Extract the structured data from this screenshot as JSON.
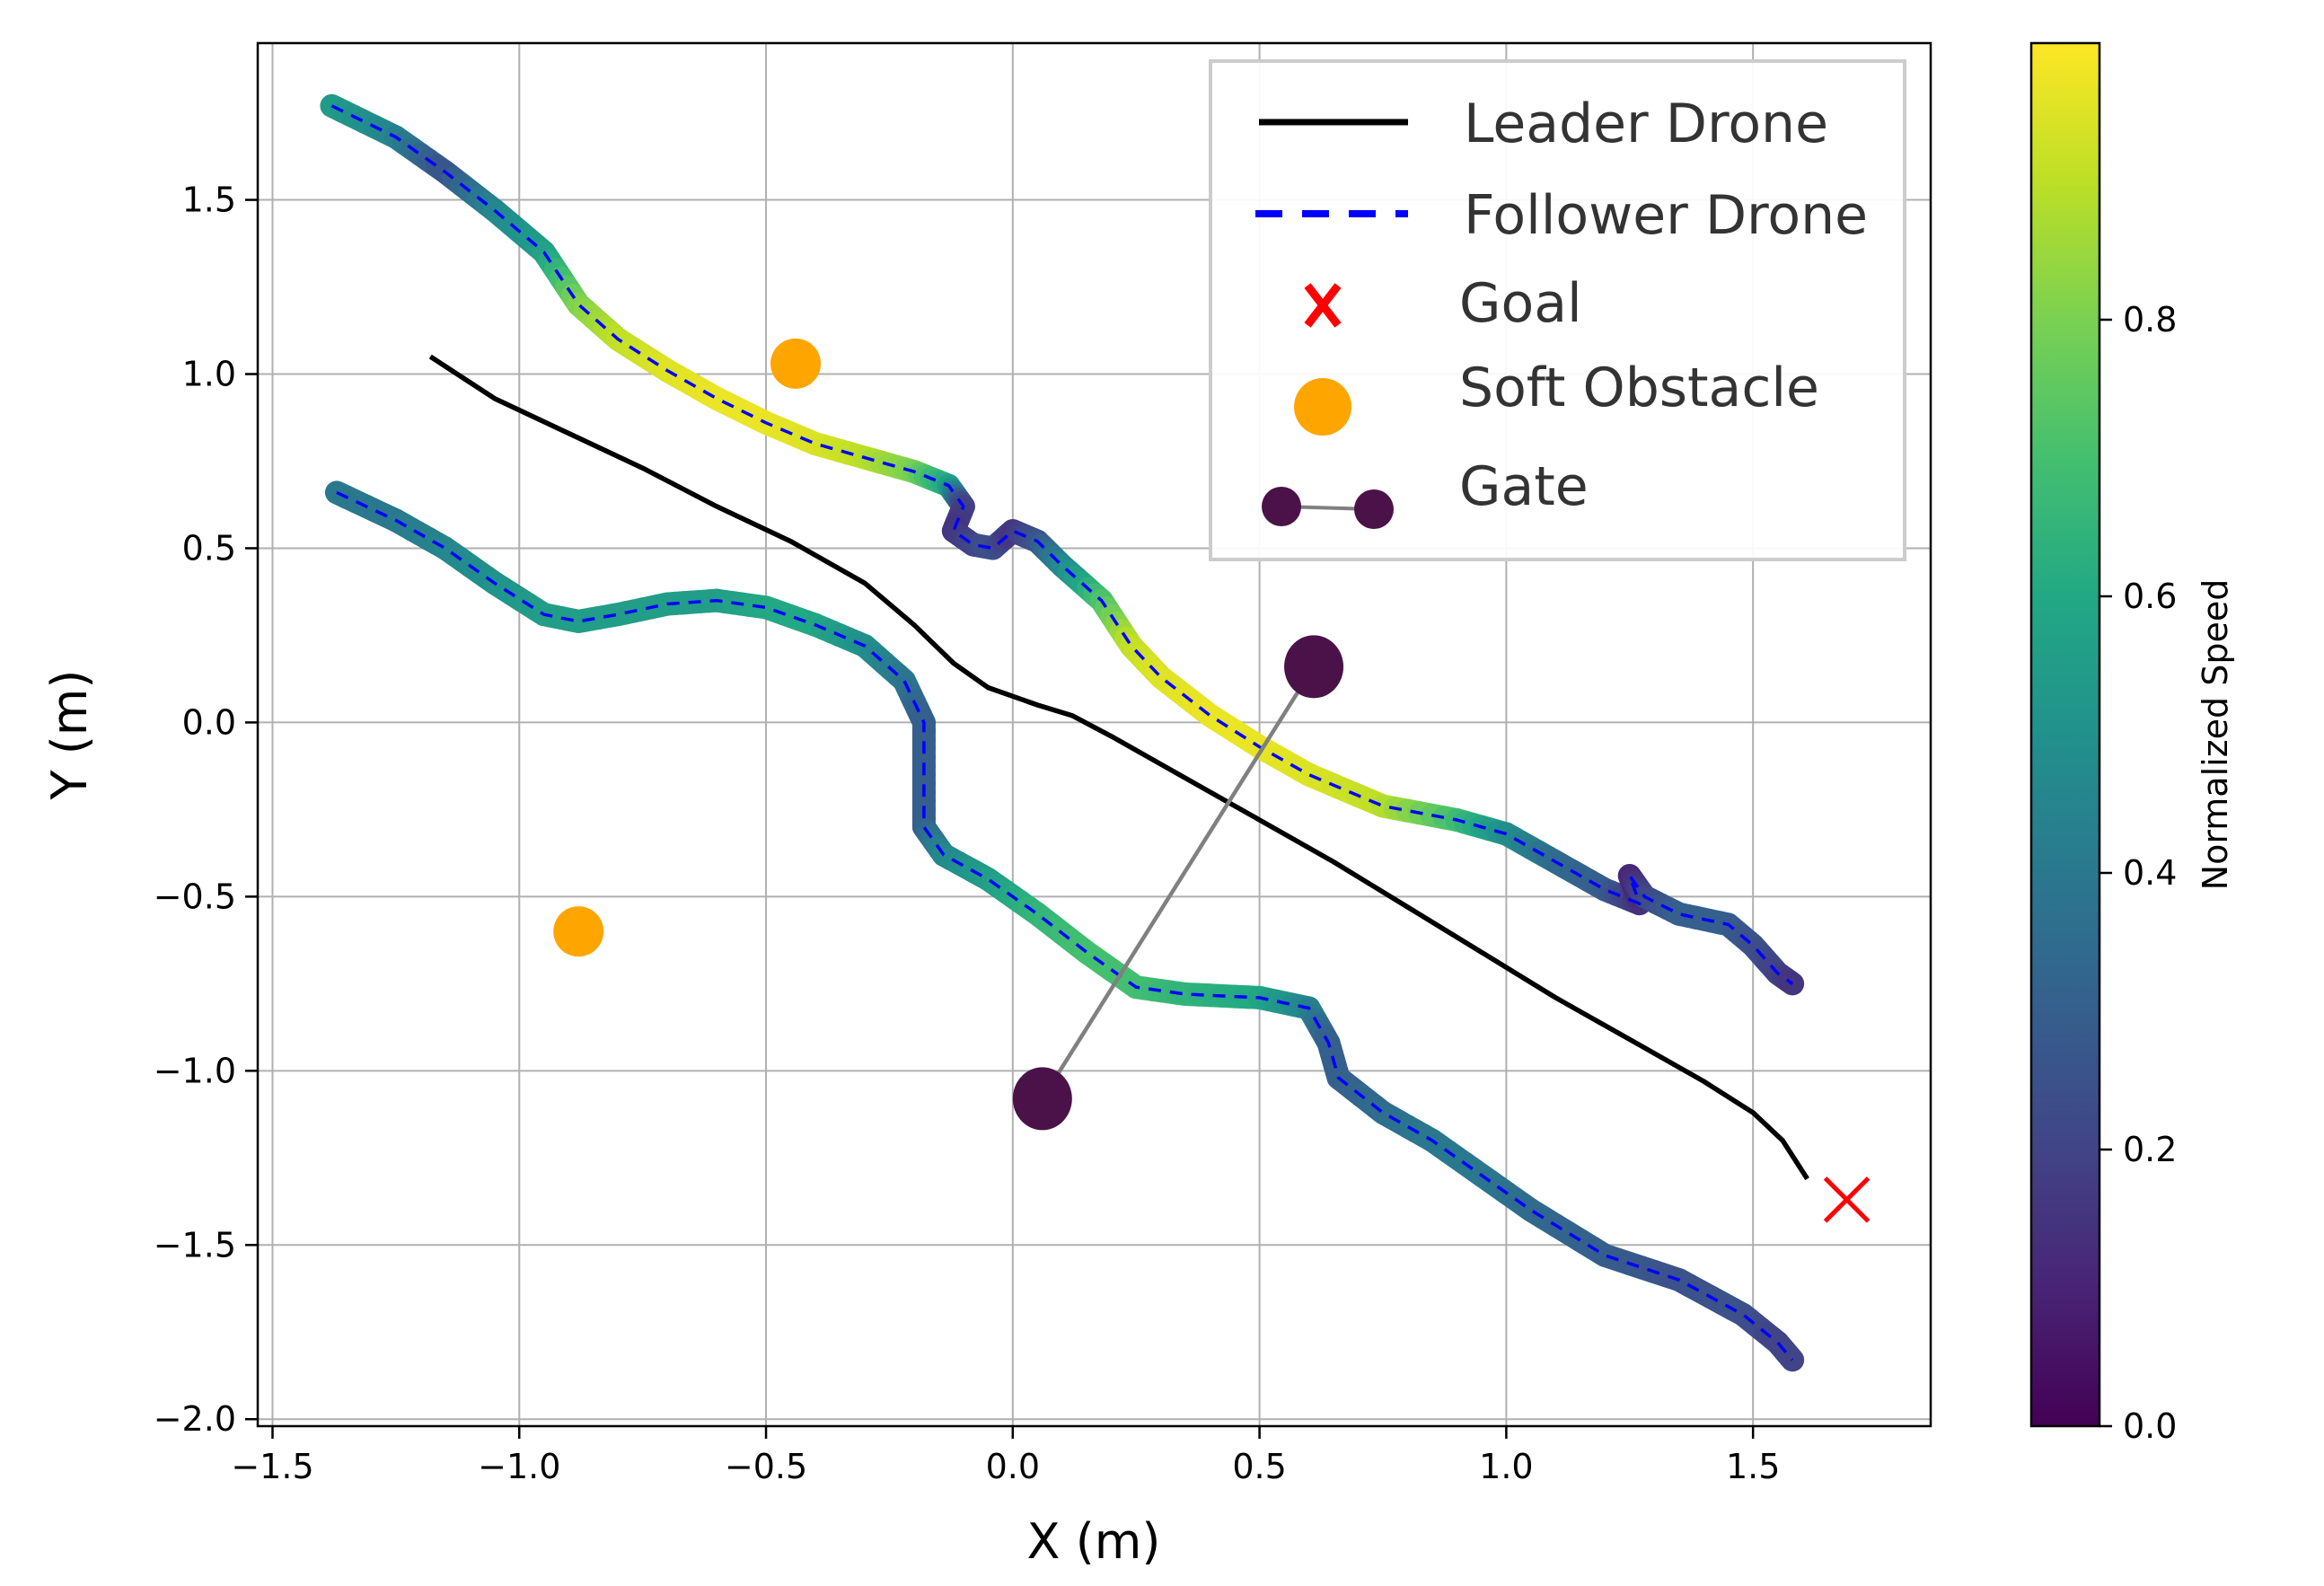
{
  "chart_data": {
    "type": "line",
    "title": "",
    "xlabel": "X (m)",
    "ylabel": "Y (m)",
    "xlim": [
      -1.53,
      1.86
    ],
    "ylim": [
      -2.02,
      1.95
    ],
    "xticks": [
      -1.5,
      -1.0,
      -0.5,
      0.0,
      0.5,
      1.0,
      1.5
    ],
    "xtick_labels": [
      "−1.5",
      "−1.0",
      "−0.5",
      "0.0",
      "0.5",
      "1.0",
      "1.5"
    ],
    "yticks": [
      1.5,
      1.0,
      0.5,
      0.0,
      -0.5,
      -1.0,
      -1.5,
      -2.0
    ],
    "ytick_labels": [
      "1.5",
      "1.0",
      "0.5",
      "0.0",
      "−0.5",
      "−1.0",
      "−1.5",
      "−2.0"
    ],
    "grid": true,
    "legend_position": "top-right",
    "legend": [
      {
        "label": "Leader Drone",
        "kind": "solid-line",
        "color": "#000000"
      },
      {
        "label": "Follower Drone",
        "kind": "dashed-line",
        "color": "#0000ff"
      },
      {
        "label": "Goal",
        "kind": "x-marker",
        "color": "#ff0000"
      },
      {
        "label": "Soft Obstacle",
        "kind": "circle-marker",
        "color": "#ffa500"
      },
      {
        "label": "Gate",
        "kind": "gate-marker",
        "color": "#4a1248"
      }
    ],
    "colorbar": {
      "label": "Normalized Speed",
      "range": [
        0.0,
        1.0
      ],
      "ticks": [
        0.0,
        0.2,
        0.4,
        0.6,
        0.8
      ],
      "tick_labels": [
        "0.0",
        "0.2",
        "0.4",
        "0.6",
        "0.8"
      ],
      "colormap": "viridis"
    },
    "series": [
      {
        "name": "Leader Drone",
        "style": "solid",
        "color": "#000000",
        "points": [
          [
            -1.18,
            1.05
          ],
          [
            -1.05,
            0.93
          ],
          [
            -0.9,
            0.83
          ],
          [
            -0.75,
            0.73
          ],
          [
            -0.6,
            0.62
          ],
          [
            -0.45,
            0.52
          ],
          [
            -0.3,
            0.4
          ],
          [
            -0.2,
            0.28
          ],
          [
            -0.12,
            0.17
          ],
          [
            -0.05,
            0.1
          ],
          [
            0.05,
            0.05
          ],
          [
            0.12,
            0.02
          ],
          [
            0.2,
            -0.04
          ],
          [
            0.35,
            -0.16
          ],
          [
            0.5,
            -0.28
          ],
          [
            0.65,
            -0.4
          ],
          [
            0.8,
            -0.53
          ],
          [
            0.95,
            -0.66
          ],
          [
            1.1,
            -0.79
          ],
          [
            1.25,
            -0.91
          ],
          [
            1.4,
            -1.03
          ],
          [
            1.5,
            -1.12
          ],
          [
            1.56,
            -1.2
          ],
          [
            1.61,
            -1.31
          ]
        ]
      },
      {
        "name": "Follower Drone (upper)",
        "style": "dashed",
        "color": "#0000ff",
        "points": [
          [
            -1.38,
            1.77
          ],
          [
            -1.25,
            1.68
          ],
          [
            -1.15,
            1.58
          ],
          [
            -1.05,
            1.47
          ],
          [
            -0.95,
            1.35
          ],
          [
            -0.88,
            1.2
          ],
          [
            -0.8,
            1.1
          ],
          [
            -0.7,
            1.01
          ],
          [
            -0.6,
            0.93
          ],
          [
            -0.5,
            0.86
          ],
          [
            -0.4,
            0.8
          ],
          [
            -0.3,
            0.76
          ],
          [
            -0.2,
            0.72
          ],
          [
            -0.13,
            0.68
          ],
          [
            -0.1,
            0.62
          ],
          [
            -0.12,
            0.55
          ],
          [
            -0.08,
            0.51
          ],
          [
            -0.04,
            0.5
          ],
          [
            0.0,
            0.55
          ],
          [
            0.05,
            0.52
          ],
          [
            0.1,
            0.45
          ],
          [
            0.18,
            0.35
          ],
          [
            0.24,
            0.22
          ],
          [
            0.3,
            0.13
          ],
          [
            0.4,
            0.02
          ],
          [
            0.5,
            -0.07
          ],
          [
            0.6,
            -0.15
          ],
          [
            0.75,
            -0.24
          ],
          [
            0.9,
            -0.28
          ],
          [
            1.0,
            -0.32
          ],
          [
            1.1,
            -0.4
          ],
          [
            1.2,
            -0.48
          ],
          [
            1.27,
            -0.52
          ],
          [
            1.25,
            -0.44
          ],
          [
            1.28,
            -0.5
          ],
          [
            1.35,
            -0.55
          ],
          [
            1.45,
            -0.58
          ],
          [
            1.5,
            -0.64
          ],
          [
            1.55,
            -0.72
          ],
          [
            1.58,
            -0.75
          ]
        ],
        "speed": [
          0.55,
          0.45,
          0.25,
          0.45,
          0.55,
          0.8,
          0.9,
          0.95,
          0.97,
          0.97,
          0.95,
          0.9,
          0.8,
          0.6,
          0.2,
          0.15,
          0.2,
          0.25,
          0.15,
          0.25,
          0.45,
          0.7,
          0.9,
          0.95,
          0.97,
          0.97,
          0.95,
          0.9,
          0.7,
          0.5,
          0.35,
          0.3,
          0.15,
          0.1,
          0.2,
          0.3,
          0.3,
          0.25,
          0.2,
          0.15
        ]
      },
      {
        "name": "Follower Drone (lower)",
        "style": "dashed",
        "color": "#0000ff",
        "points": [
          [
            -1.37,
            0.66
          ],
          [
            -1.25,
            0.58
          ],
          [
            -1.15,
            0.5
          ],
          [
            -1.05,
            0.4
          ],
          [
            -0.95,
            0.31
          ],
          [
            -0.88,
            0.29
          ],
          [
            -0.8,
            0.31
          ],
          [
            -0.7,
            0.34
          ],
          [
            -0.6,
            0.35
          ],
          [
            -0.5,
            0.33
          ],
          [
            -0.4,
            0.28
          ],
          [
            -0.3,
            0.22
          ],
          [
            -0.22,
            0.12
          ],
          [
            -0.18,
            0.0
          ],
          [
            -0.18,
            -0.15
          ],
          [
            -0.18,
            -0.3
          ],
          [
            -0.14,
            -0.38
          ],
          [
            -0.05,
            -0.45
          ],
          [
            0.05,
            -0.55
          ],
          [
            0.15,
            -0.66
          ],
          [
            0.25,
            -0.76
          ],
          [
            0.35,
            -0.78
          ],
          [
            0.5,
            -0.79
          ],
          [
            0.6,
            -0.82
          ],
          [
            0.64,
            -0.92
          ],
          [
            0.66,
            -1.02
          ],
          [
            0.75,
            -1.12
          ],
          [
            0.85,
            -1.2
          ],
          [
            0.95,
            -1.3
          ],
          [
            1.05,
            -1.4
          ],
          [
            1.2,
            -1.53
          ],
          [
            1.35,
            -1.6
          ],
          [
            1.48,
            -1.7
          ],
          [
            1.55,
            -1.78
          ],
          [
            1.58,
            -1.83
          ]
        ],
        "speed": [
          0.4,
          0.4,
          0.45,
          0.5,
          0.55,
          0.55,
          0.55,
          0.55,
          0.55,
          0.6,
          0.6,
          0.5,
          0.4,
          0.3,
          0.3,
          0.3,
          0.45,
          0.55,
          0.65,
          0.7,
          0.7,
          0.65,
          0.6,
          0.45,
          0.3,
          0.3,
          0.35,
          0.4,
          0.4,
          0.35,
          0.3,
          0.25,
          0.25,
          0.2,
          0.2
        ]
      }
    ],
    "goal": {
      "x": 1.69,
      "y": -1.37
    },
    "soft_obstacles": [
      {
        "x": -0.44,
        "y": 1.03
      },
      {
        "x": -0.88,
        "y": -0.6
      }
    ],
    "gate": {
      "p1": {
        "x": 0.61,
        "y": 0.16
      },
      "p2": {
        "x": 0.06,
        "y": -1.08
      }
    }
  }
}
